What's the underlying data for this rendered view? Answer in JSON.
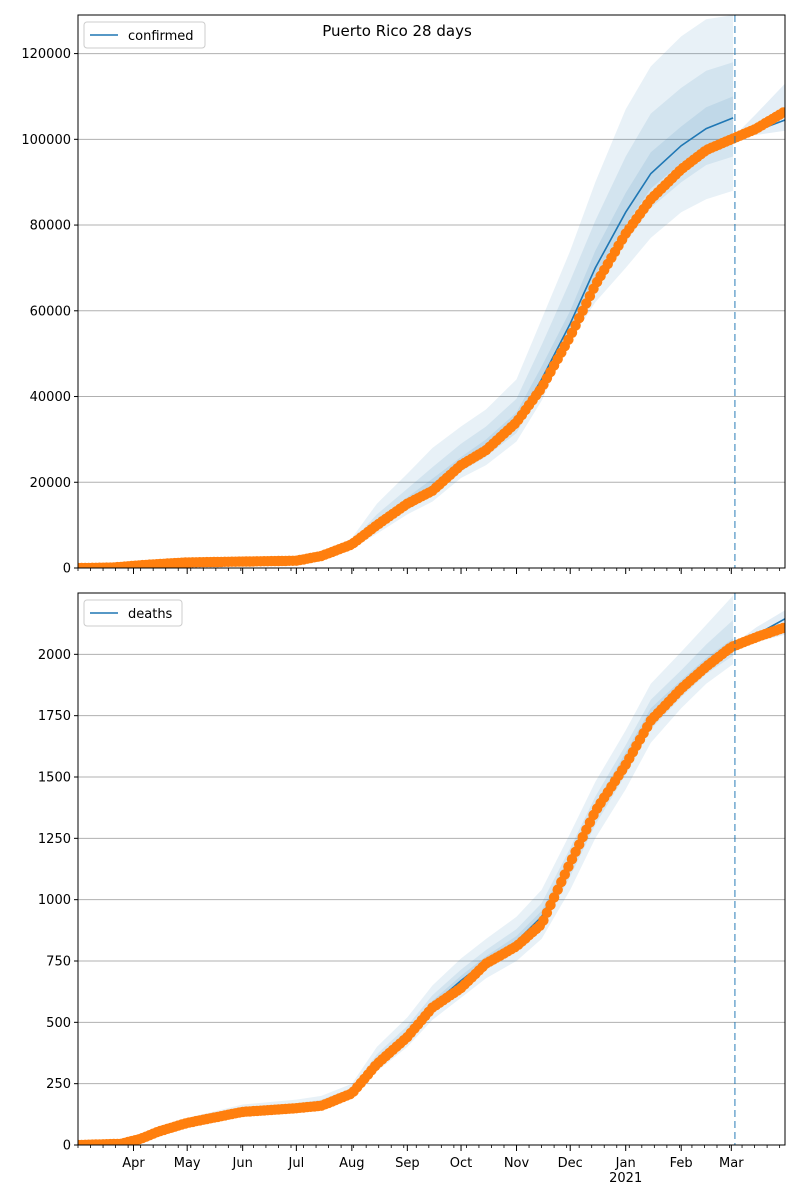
{
  "title": "Puerto Rico 28 days",
  "colors": {
    "forecast_line": "#1f77b4",
    "observed": "#ff7f0e",
    "band": "#1f77b4",
    "grid": "#b0b0b0",
    "vline": "#1f77b4"
  },
  "x_axis": {
    "start": "2020-03-01",
    "end": "2021-03-31",
    "month_ticks": [
      {
        "date": "2020-04-01",
        "label": "Apr"
      },
      {
        "date": "2020-05-01",
        "label": "May"
      },
      {
        "date": "2020-06-01",
        "label": "Jun"
      },
      {
        "date": "2020-07-01",
        "label": "Jul"
      },
      {
        "date": "2020-08-01",
        "label": "Aug"
      },
      {
        "date": "2020-09-01",
        "label": "Sep"
      },
      {
        "date": "2020-10-01",
        "label": "Oct"
      },
      {
        "date": "2020-11-01",
        "label": "Nov"
      },
      {
        "date": "2020-12-01",
        "label": "Dec"
      },
      {
        "date": "2021-01-01",
        "label": "Jan"
      },
      {
        "date": "2021-02-01",
        "label": "Feb"
      },
      {
        "date": "2021-03-01",
        "label": "Mar"
      }
    ],
    "year_label": {
      "date": "2021-01-01",
      "label": "2021"
    },
    "forecast_start": "2021-03-03"
  },
  "chart_data": [
    {
      "type": "line",
      "legend": "confirmed",
      "legend_position": "top-left",
      "ylim": [
        0,
        129000
      ],
      "yticks": [
        0,
        20000,
        40000,
        60000,
        80000,
        100000,
        120000
      ],
      "ytick_labels": [
        "0",
        "20000",
        "40000",
        "60000",
        "80000",
        "100000",
        "120000"
      ],
      "grid": "horizontal",
      "forecast": {
        "x": [
          "2020-03-01",
          "2020-07-01",
          "2020-07-15",
          "2020-08-01",
          "2020-08-15",
          "2020-09-01",
          "2020-09-15",
          "2020-10-01",
          "2020-10-15",
          "2020-11-01",
          "2020-11-15",
          "2020-12-01",
          "2020-12-15",
          "2021-01-01",
          "2021-01-15",
          "2021-02-01",
          "2021-02-15",
          "2021-03-02"
        ],
        "y": [
          0,
          1600,
          2500,
          5500,
          10000,
          15000,
          19000,
          24000,
          28000,
          34000,
          44000,
          57000,
          70000,
          83000,
          92000,
          98500,
          102500,
          105000
        ],
        "bands": [
          {
            "low": [
              0,
              1500,
              2300,
              4500,
              8000,
              12500,
              15500,
              21000,
              24000,
              29500,
              39000,
              53000,
              62000,
              70000,
              77000,
              83000,
              86000,
              88000
            ],
            "high": [
              0,
              1800,
              3000,
              7000,
              15000,
              22000,
              28000,
              33000,
              37000,
              44000,
              58000,
              74000,
              90000,
              107000,
              117000,
              124000,
              128000,
              129000
            ]
          },
          {
            "low": [
              0,
              1550,
              2400,
              5000,
              9000,
              13500,
              17000,
              22500,
              26000,
              31500,
              42000,
              55000,
              66000,
              76000,
              84000,
              90000,
              94000,
              96000
            ],
            "high": [
              0,
              1700,
              2800,
              6300,
              12500,
              18500,
              23500,
              29000,
              33000,
              39500,
              52000,
              67000,
              81000,
              96000,
              106000,
              112000,
              116000,
              118000
            ]
          },
          {
            "low": [
              0,
              1580,
              2450,
              5300,
              9600,
              14300,
              18200,
              23400,
              27200,
              32900,
              43200,
              56000,
              68000,
              80000,
              88500,
              94500,
              98500,
              101000
            ],
            "high": [
              0,
              1650,
              2650,
              5900,
              11000,
              16500,
              20800,
              25900,
              30000,
              36300,
              47000,
              60000,
              74000,
              87500,
              97000,
              103000,
              107500,
              110000
            ]
          }
        ]
      },
      "post_forecast": {
        "x": [
          "2021-03-02",
          "2021-03-15",
          "2021-03-31"
        ],
        "y": [
          100000,
          102000,
          104500
        ],
        "band_low": [
          100000,
          101000,
          102000
        ],
        "band_high": [
          100500,
          106000,
          113000
        ]
      },
      "observed": {
        "x": [
          "2020-03-01",
          "2020-03-20",
          "2020-04-10",
          "2020-05-01",
          "2020-06-01",
          "2020-07-01",
          "2020-07-15",
          "2020-08-01",
          "2020-08-15",
          "2020-09-01",
          "2020-09-15",
          "2020-10-01",
          "2020-10-15",
          "2020-11-01",
          "2020-11-15",
          "2020-12-01",
          "2020-12-15",
          "2021-01-01",
          "2021-01-15",
          "2021-02-01",
          "2021-02-15",
          "2021-03-01",
          "2021-03-15",
          "2021-03-31"
        ],
        "y": [
          0,
          100,
          800,
          1300,
          1500,
          1700,
          2800,
          5500,
          10000,
          15000,
          18000,
          24000,
          27500,
          34000,
          42000,
          54000,
          66000,
          78000,
          86000,
          93000,
          97500,
          100000,
          102500,
          106500
        ]
      }
    },
    {
      "type": "line",
      "legend": "deaths",
      "legend_position": "top-left",
      "ylim": [
        0,
        2250
      ],
      "yticks": [
        0,
        250,
        500,
        750,
        1000,
        1250,
        1500,
        1750,
        2000
      ],
      "ytick_labels": [
        "0",
        "250",
        "500",
        "750",
        "1000",
        "1250",
        "1500",
        "1750",
        "2000"
      ],
      "grid": "horizontal",
      "forecast": {
        "x": [
          "2020-03-01",
          "2020-03-25",
          "2020-04-15",
          "2020-05-01",
          "2020-06-01",
          "2020-07-01",
          "2020-07-15",
          "2020-08-01",
          "2020-08-15",
          "2020-09-01",
          "2020-09-15",
          "2020-10-01",
          "2020-10-15",
          "2020-11-01",
          "2020-11-15",
          "2020-12-01",
          "2020-12-15",
          "2021-01-01",
          "2021-01-15",
          "2021-02-01",
          "2021-02-15",
          "2021-03-02"
        ],
        "y": [
          0,
          5,
          50,
          95,
          140,
          155,
          170,
          215,
          340,
          450,
          570,
          670,
          750,
          830,
          930,
          1150,
          1360,
          1570,
          1750,
          1870,
          1960,
          2030
        ],
        "bands": [
          {
            "low": [
              0,
              5,
              45,
              85,
              130,
              145,
              155,
              190,
              300,
              400,
              510,
              600,
              680,
              750,
              840,
              1040,
              1250,
              1450,
              1640,
              1780,
              1880,
              1960
            ],
            "high": [
              0,
              8,
              60,
              110,
              165,
              185,
              200,
              250,
              400,
              520,
              650,
              760,
              840,
              930,
              1040,
              1270,
              1480,
              1690,
              1880,
              2010,
              2120,
              2240
            ]
          },
          {
            "low": [
              0,
              5,
              48,
              90,
              135,
              150,
              162,
              202,
              320,
              425,
              540,
              635,
              715,
              790,
              885,
              1095,
              1305,
              1510,
              1695,
              1825,
              1920,
              1995
            ],
            "high": [
              0,
              7,
              55,
              102,
              152,
              170,
              185,
              232,
              370,
              485,
              610,
              715,
              795,
              880,
              985,
              1210,
              1420,
              1630,
              1815,
              1935,
              2040,
              2140
            ]
          },
          {
            "low": [
              0,
              5,
              49,
              92,
              137,
              152,
              166,
              208,
              330,
              438,
              555,
              652,
              732,
              810,
              908,
              1122,
              1332,
              1540,
              1722,
              1848,
              1940,
              2012
            ],
            "high": [
              0,
              6,
              52,
              98,
              145,
              160,
              176,
              224,
              352,
              465,
              588,
              690,
              770,
              852,
              955,
              1180,
              1390,
              1600,
              1780,
              1895,
              1985,
              2065
            ]
          }
        ]
      },
      "post_forecast": {
        "x": [
          "2021-03-02",
          "2021-03-15",
          "2021-03-31"
        ],
        "y": [
          2030,
          2080,
          2145
        ],
        "band_low": [
          2020,
          2050,
          2080
        ],
        "band_high": [
          2040,
          2110,
          2180
        ]
      },
      "observed": {
        "x": [
          "2020-03-01",
          "2020-03-25",
          "2020-04-05",
          "2020-04-15",
          "2020-05-01",
          "2020-06-01",
          "2020-07-01",
          "2020-07-15",
          "2020-08-01",
          "2020-08-15",
          "2020-09-01",
          "2020-09-15",
          "2020-10-01",
          "2020-10-15",
          "2020-11-01",
          "2020-11-15",
          "2020-12-01",
          "2020-12-15",
          "2021-01-01",
          "2021-01-15",
          "2021-02-01",
          "2021-02-15",
          "2021-03-01",
          "2021-03-15",
          "2021-03-31"
        ],
        "y": [
          0,
          5,
          25,
          55,
          90,
          135,
          150,
          160,
          210,
          330,
          440,
          560,
          640,
          740,
          810,
          900,
          1150,
          1360,
          1550,
          1730,
          1860,
          1950,
          2030,
          2070,
          2110
        ]
      }
    }
  ]
}
